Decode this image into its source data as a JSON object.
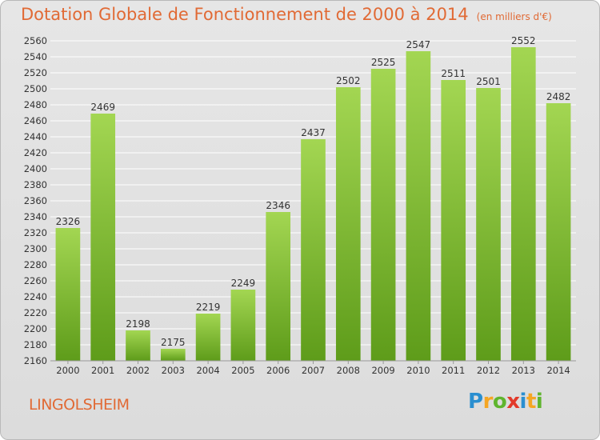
{
  "title": "Dotation Globale de Fonctionnement de 2000 à 2014",
  "unit": "(en milliers d'€)",
  "city": "LINGOLSHEIM",
  "logo": "Proxiti",
  "colors": {
    "accent": "#e16a35",
    "bar_top": "#a3d652",
    "bar_bottom": "#5e9c1a",
    "grid": "#ffffff"
  },
  "chart_data": {
    "type": "bar",
    "title": "Dotation Globale de Fonctionnement de 2000 à 2014",
    "categories": [
      "2000",
      "2001",
      "2002",
      "2003",
      "2004",
      "2005",
      "2006",
      "2007",
      "2008",
      "2009",
      "2010",
      "2011",
      "2012",
      "2013",
      "2014"
    ],
    "values": [
      2326,
      2469,
      2198,
      2175,
      2219,
      2249,
      2346,
      2437,
      2502,
      2525,
      2547,
      2511,
      2501,
      2552,
      2482
    ],
    "ylim": [
      2160,
      2560
    ],
    "ytick_step": 20,
    "grid": true,
    "data_labels": true
  }
}
